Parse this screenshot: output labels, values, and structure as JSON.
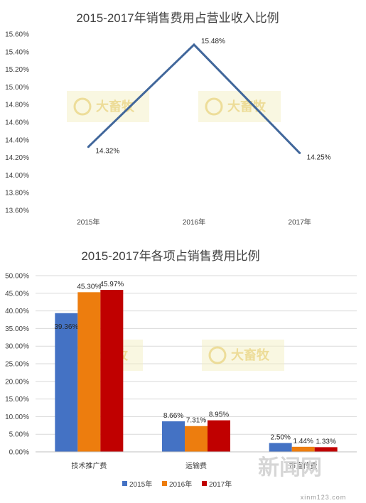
{
  "chart_data": [
    {
      "type": "line",
      "title": "2015-2017年销售费用占营业收入比例",
      "categories": [
        "2015年",
        "2016年",
        "2017年"
      ],
      "series": [
        {
          "values": [
            14.32,
            15.48,
            14.25
          ],
          "labels": [
            "14.32%",
            "15.48%",
            "14.25%"
          ],
          "color": "#41679b"
        }
      ],
      "ylim": [
        13.6,
        15.6
      ],
      "yticks": [
        "13.60%",
        "13.80%",
        "14.00%",
        "14.20%",
        "14.40%",
        "14.60%",
        "14.80%",
        "15.00%",
        "15.20%",
        "15.40%",
        "15.60%"
      ],
      "grid": false,
      "legend": "none"
    },
    {
      "type": "bar",
      "title": "2015-2017年各项占销售费用比例",
      "categories": [
        "技术推广费",
        "运输费",
        "市宣传费"
      ],
      "series": [
        {
          "name": "2015年",
          "values": [
            39.36,
            8.66,
            2.5
          ],
          "labels": [
            "39.36%",
            "8.66%",
            "2.50%"
          ],
          "color": "#4472c4"
        },
        {
          "name": "2016年",
          "values": [
            45.3,
            7.31,
            1.44
          ],
          "labels": [
            "45.30%",
            "7.31%",
            "1.44%"
          ],
          "color": "#ed7d0e"
        },
        {
          "name": "2017年",
          "values": [
            45.97,
            8.95,
            1.33
          ],
          "labels": [
            "45.97%",
            "8.95%",
            "1.33%"
          ],
          "color": "#c00000"
        }
      ],
      "ylim": [
        0,
        50
      ],
      "yticks": [
        "0.00%",
        "5.00%",
        "10.00%",
        "15.00%",
        "20.00%",
        "25.00%",
        "30.00%",
        "35.00%",
        "40.00%",
        "45.00%",
        "50.00%"
      ],
      "grid": true,
      "legend": "bottom"
    }
  ],
  "watermark": {
    "brand": "大畜牧",
    "stamp": "新闻网",
    "url": "xinm123.com"
  }
}
